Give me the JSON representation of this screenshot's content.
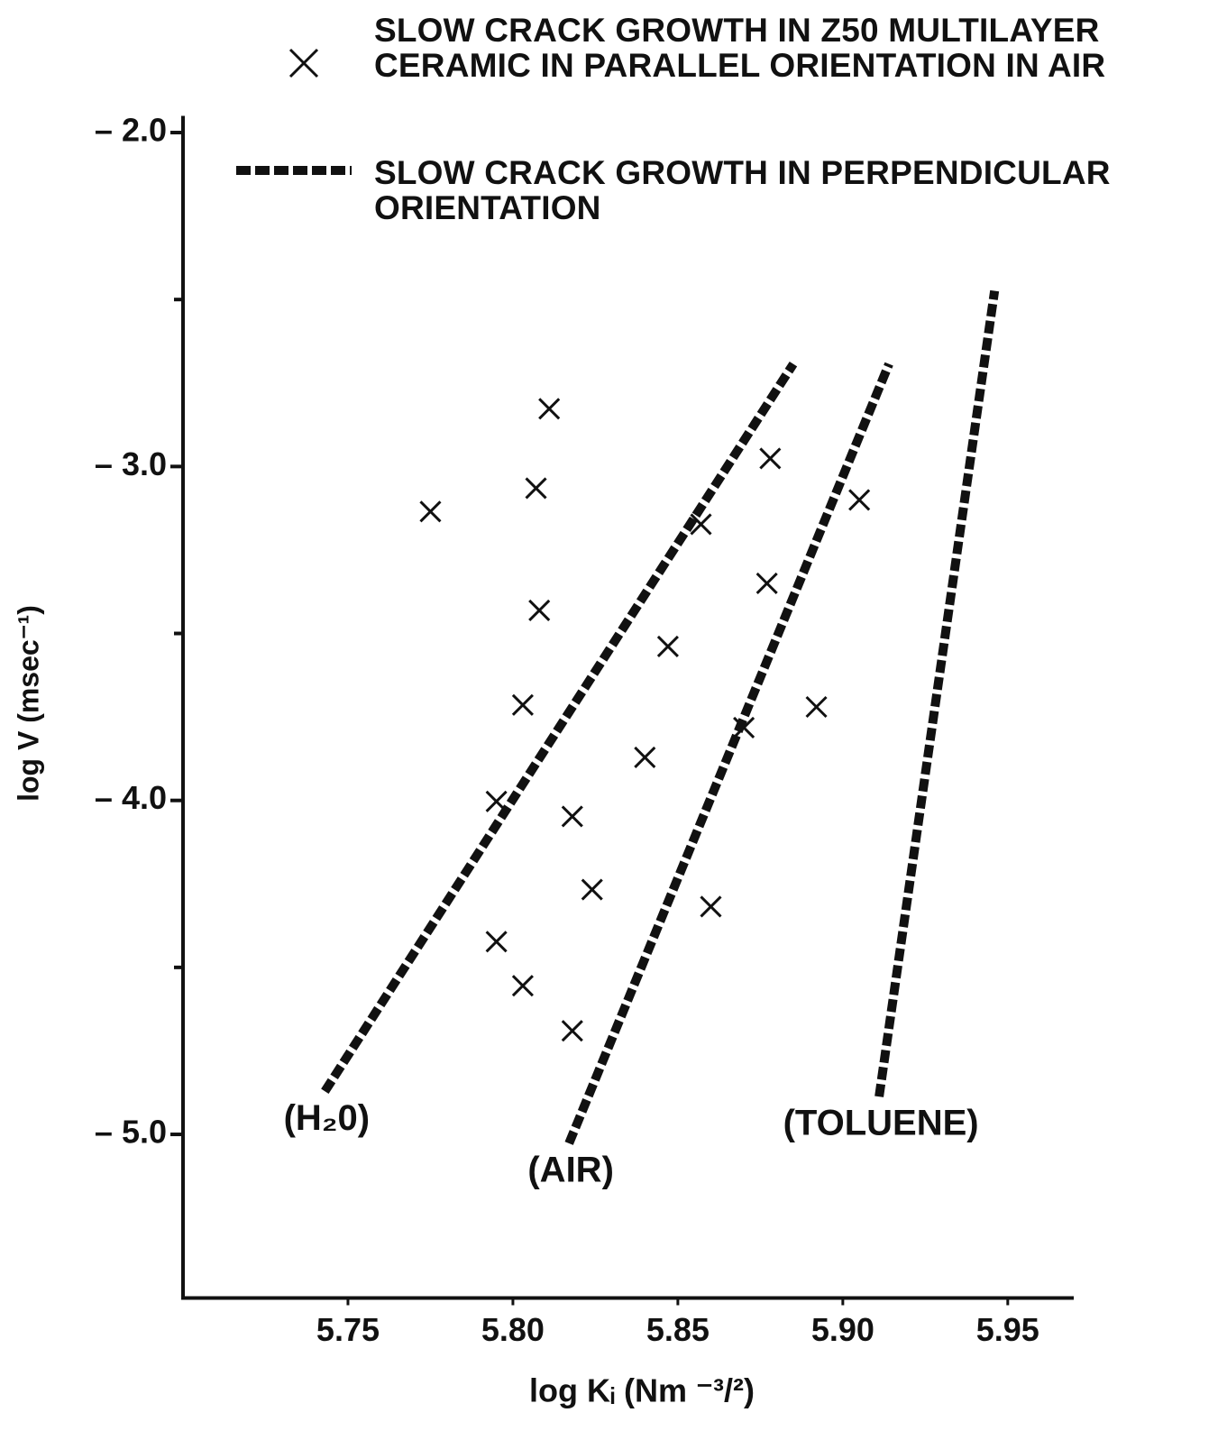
{
  "chart_data": {
    "type": "scatter",
    "x_label": "log Kᵢ (Nm ⁻³/²)",
    "y_label": "log V (msec⁻¹)",
    "xlim": [
      5.7,
      5.97
    ],
    "ylim": [
      -5.49,
      -1.95
    ],
    "xticks": [
      5.75,
      {
        "value": 5.8,
        "label": "5.80"
      },
      5.85,
      {
        "value": 5.9,
        "label": "5.90"
      },
      5.95
    ],
    "yticks": [
      {
        "value": -2,
        "label": "– 2.0"
      },
      {
        "value": -3,
        "label": "– 3.0"
      },
      {
        "value": -4,
        "label": "– 4.0"
      },
      {
        "value": -5,
        "label": "– 5.0"
      }
    ],
    "yminor_ticks": [
      -2.5,
      -3.5,
      -4.5
    ],
    "series": [
      {
        "name": "SLOW CRACK GROWTH IN Z50 MULTILAYER CERAMIC IN PARALLEL ORIENTATION IN AIR",
        "color": "#111111",
        "marker": "x",
        "x": [
          5.775,
          5.811,
          5.807,
          5.808,
          5.803,
          5.795,
          5.818,
          5.824,
          5.795,
          5.803,
          5.818,
          5.847,
          5.84,
          5.857,
          5.878,
          5.877,
          5.87,
          5.892,
          5.905,
          5.86
        ],
        "values": [
          -3.135,
          -2.827,
          -3.065,
          -3.431,
          -3.714,
          -4.003,
          -4.048,
          -4.267,
          -4.423,
          -4.555,
          -4.69,
          -3.539,
          -3.871,
          -3.173,
          -2.976,
          -3.35,
          -3.782,
          -3.72,
          -3.1,
          -4.318
        ]
      }
    ],
    "lines": {
      "name": "SLOW CRACK GROWTH IN PERPENDICULAR ORIENTATION",
      "color": "#111111",
      "segments": [
        {
          "label": "(H₂0)",
          "x": [
            5.743,
            5.885
          ],
          "values": [
            -4.871,
            -2.693
          ]
        },
        {
          "label": "(AIR)",
          "x": [
            5.817,
            5.914
          ],
          "values": [
            -5.027,
            -2.693
          ]
        },
        {
          "label": "(TOLUENE)",
          "x": [
            5.911,
            5.946
          ],
          "values": [
            -4.887,
            -2.474
          ]
        }
      ]
    }
  }
}
